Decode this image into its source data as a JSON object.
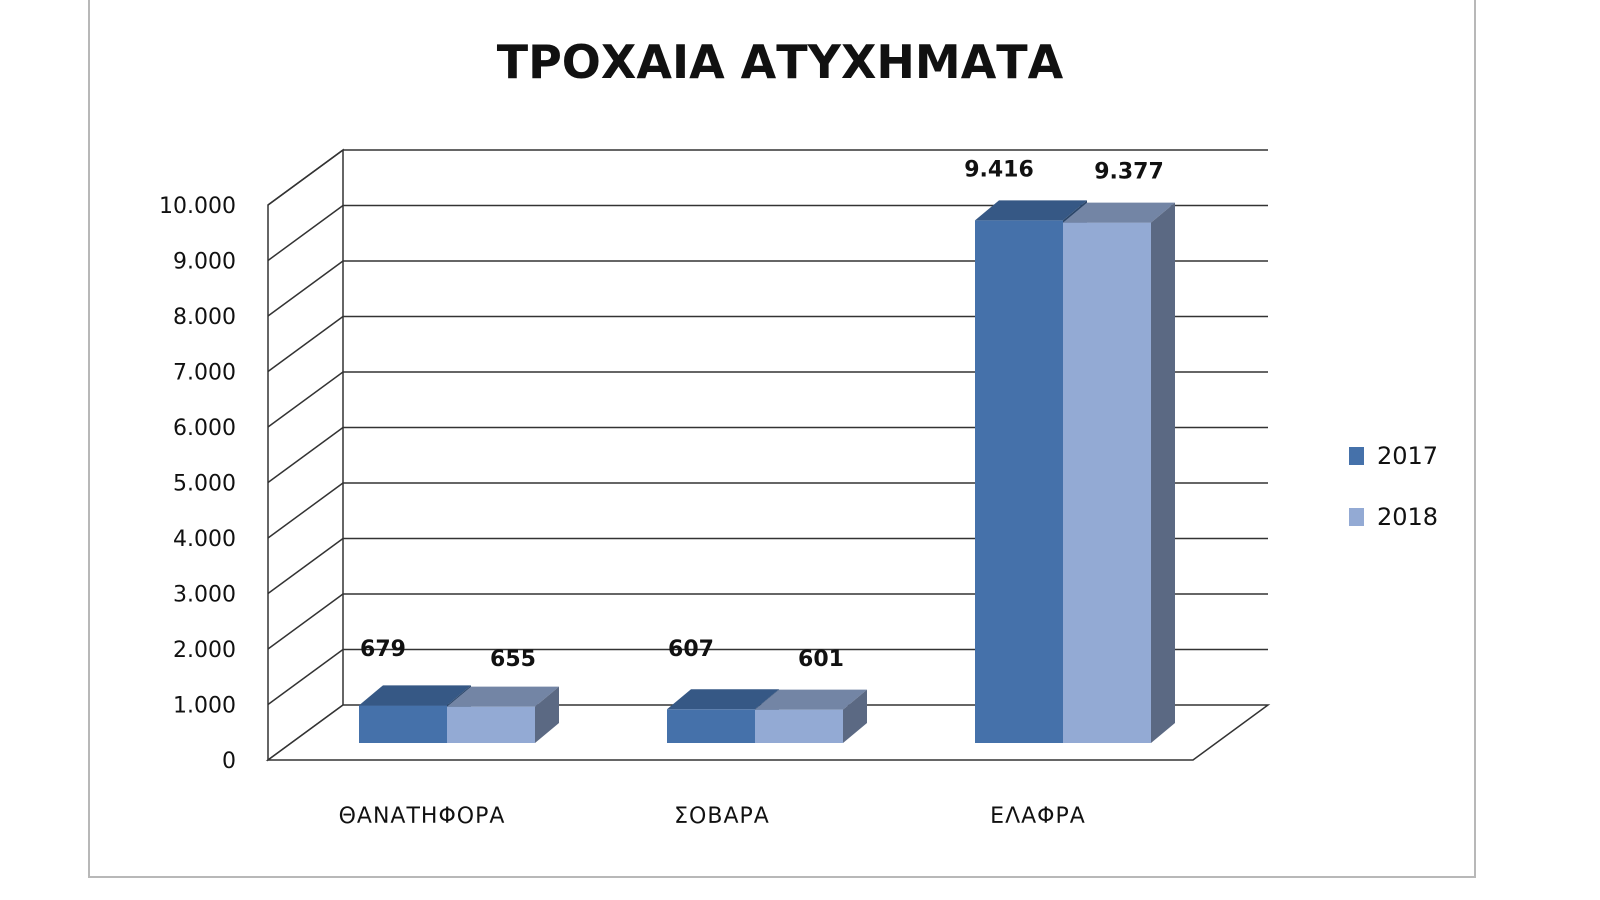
{
  "chart_data": {
    "type": "bar",
    "title": "ΤΡΟΧΑΙΑ ΑΤΥΧΗΜΑΤΑ",
    "categories": [
      "ΘΑΝΑΤΗΦΟΡΑ",
      "ΣΟΒΑΡΑ",
      "ΕΛΑΦΡΑ"
    ],
    "series": [
      {
        "name": "2017",
        "values": [
          679,
          607,
          9416
        ],
        "labels": [
          "679",
          "607",
          "9.416"
        ],
        "color": "#4571aa"
      },
      {
        "name": "2018",
        "values": [
          655,
          601,
          9377
        ],
        "labels": [
          "655",
          "601",
          "9.377"
        ],
        "color": "#93aad4"
      }
    ],
    "ylim": [
      0,
      10000
    ],
    "yticks": [
      0,
      1000,
      2000,
      3000,
      4000,
      5000,
      6000,
      7000,
      8000,
      9000,
      10000
    ],
    "ytick_labels": [
      "0",
      "1.000",
      "2.000",
      "3.000",
      "4.000",
      "5.000",
      "6.000",
      "7.000",
      "8.000",
      "9.000",
      "10.000"
    ],
    "grid": true,
    "three_d": true,
    "legend_position": "right"
  }
}
